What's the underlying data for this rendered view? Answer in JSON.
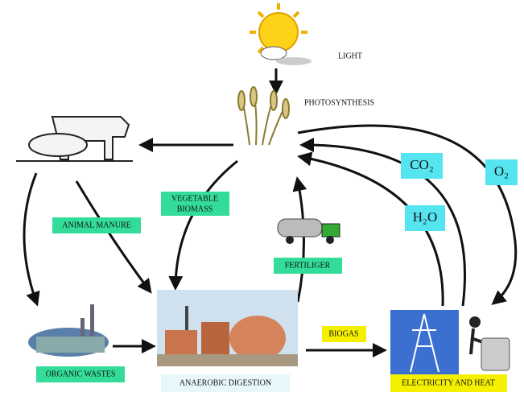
{
  "labels": {
    "light": "LIGHT",
    "photosynthesis": "PHOTOSYNTHESIS",
    "vegetable_biomass": [
      "VEGETABLE",
      "BIOMASS"
    ],
    "animal_manure": "ANIMAL MANURE",
    "fertilizer": "FERTILIGER",
    "co2": "CO₂",
    "o2": "O₂",
    "h2o": "H₂O",
    "organic_wastes": "ORGANIC WASTES",
    "anaerobic_digestion": "ANAEROBIC DIGESTION",
    "biogas": "BIOGAS",
    "electricity_and_heat": "ELECTRICITY AND HEAT"
  }
}
